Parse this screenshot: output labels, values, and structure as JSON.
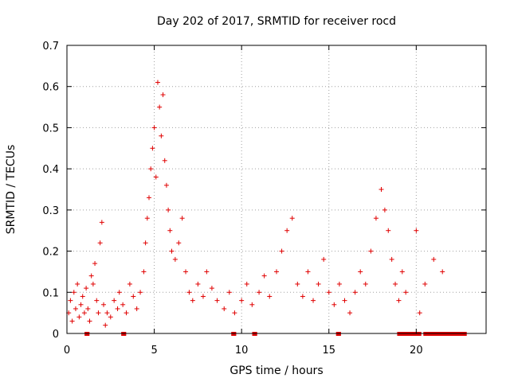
{
  "chart_data": {
    "type": "scatter",
    "title": "Day 202 of 2017, SRMTID for receiver rocd",
    "xlabel": "GPS time / hours",
    "ylabel": "SRMTID / TECUs",
    "xlim": [
      0,
      24
    ],
    "ylim": [
      0,
      0.7
    ],
    "xticks": [
      0,
      5,
      10,
      15,
      20
    ],
    "xtick_labels": [
      "0",
      "5",
      "10",
      "15",
      "20"
    ],
    "yticks": [
      0,
      0.1,
      0.2,
      0.3,
      0.4,
      0.5,
      0.6,
      0.7
    ],
    "ytick_labels": [
      "0",
      "0.1",
      "0.2",
      "0.3",
      "0.4",
      "0.5",
      "0.6",
      "0.7"
    ],
    "grid": true,
    "marker": "+",
    "color": "#e00000",
    "series": [
      {
        "name": "SRMTID",
        "points": [
          [
            0.1,
            0.05
          ],
          [
            0.2,
            0.08
          ],
          [
            0.3,
            0.03
          ],
          [
            0.4,
            0.1
          ],
          [
            0.5,
            0.06
          ],
          [
            0.6,
            0.12
          ],
          [
            0.7,
            0.04
          ],
          [
            0.8,
            0.07
          ],
          [
            0.9,
            0.09
          ],
          [
            1.0,
            0.05
          ],
          [
            1.1,
            0.11
          ],
          [
            1.2,
            0.06
          ],
          [
            1.3,
            0.03
          ],
          [
            1.4,
            0.14
          ],
          [
            1.5,
            0.12
          ],
          [
            1.6,
            0.17
          ],
          [
            1.7,
            0.08
          ],
          [
            1.8,
            0.05
          ],
          [
            1.9,
            0.22
          ],
          [
            2.0,
            0.27
          ],
          [
            2.1,
            0.07
          ],
          [
            2.2,
            0.02
          ],
          [
            2.3,
            0.05
          ],
          [
            2.5,
            0.04
          ],
          [
            2.7,
            0.08
          ],
          [
            2.9,
            0.06
          ],
          [
            3.0,
            0.1
          ],
          [
            3.2,
            0.07
          ],
          [
            3.4,
            0.05
          ],
          [
            3.6,
            0.12
          ],
          [
            3.8,
            0.09
          ],
          [
            4.0,
            0.06
          ],
          [
            4.2,
            0.1
          ],
          [
            4.4,
            0.15
          ],
          [
            4.5,
            0.22
          ],
          [
            4.6,
            0.28
          ],
          [
            4.7,
            0.33
          ],
          [
            4.8,
            0.4
          ],
          [
            4.9,
            0.45
          ],
          [
            5.0,
            0.5
          ],
          [
            5.1,
            0.38
          ],
          [
            5.2,
            0.61
          ],
          [
            5.3,
            0.55
          ],
          [
            5.4,
            0.48
          ],
          [
            5.5,
            0.58
          ],
          [
            5.6,
            0.42
          ],
          [
            5.7,
            0.36
          ],
          [
            5.8,
            0.3
          ],
          [
            5.9,
            0.25
          ],
          [
            6.0,
            0.2
          ],
          [
            6.2,
            0.18
          ],
          [
            6.4,
            0.22
          ],
          [
            6.6,
            0.28
          ],
          [
            6.8,
            0.15
          ],
          [
            7.0,
            0.1
          ],
          [
            7.2,
            0.08
          ],
          [
            7.5,
            0.12
          ],
          [
            7.8,
            0.09
          ],
          [
            8.0,
            0.15
          ],
          [
            8.3,
            0.11
          ],
          [
            8.6,
            0.08
          ],
          [
            9.0,
            0.06
          ],
          [
            9.3,
            0.1
          ],
          [
            9.6,
            0.05
          ],
          [
            10.0,
            0.08
          ],
          [
            10.3,
            0.12
          ],
          [
            10.6,
            0.07
          ],
          [
            11.0,
            0.1
          ],
          [
            11.3,
            0.14
          ],
          [
            11.6,
            0.09
          ],
          [
            12.0,
            0.15
          ],
          [
            12.3,
            0.2
          ],
          [
            12.6,
            0.25
          ],
          [
            12.9,
            0.28
          ],
          [
            13.2,
            0.12
          ],
          [
            13.5,
            0.09
          ],
          [
            13.8,
            0.15
          ],
          [
            14.1,
            0.08
          ],
          [
            14.4,
            0.12
          ],
          [
            14.7,
            0.18
          ],
          [
            15.0,
            0.1
          ],
          [
            15.3,
            0.07
          ],
          [
            15.6,
            0.12
          ],
          [
            15.9,
            0.08
          ],
          [
            16.2,
            0.05
          ],
          [
            16.5,
            0.1
          ],
          [
            16.8,
            0.15
          ],
          [
            17.1,
            0.12
          ],
          [
            17.4,
            0.2
          ],
          [
            17.7,
            0.28
          ],
          [
            18.0,
            0.35
          ],
          [
            18.2,
            0.3
          ],
          [
            18.4,
            0.25
          ],
          [
            18.6,
            0.18
          ],
          [
            18.8,
            0.12
          ],
          [
            19.0,
            0.08
          ],
          [
            19.2,
            0.15
          ],
          [
            19.4,
            0.1
          ],
          [
            20.0,
            0.25
          ],
          [
            20.2,
            0.05
          ],
          [
            20.5,
            0.12
          ],
          [
            21.0,
            0.18
          ],
          [
            21.5,
            0.15
          ]
        ]
      }
    ],
    "baseline_markers_y": 0,
    "baseline_ranges": [
      [
        1.1,
        1.2
      ],
      [
        3.2,
        3.3
      ],
      [
        9.5,
        9.6
      ],
      [
        10.7,
        10.8
      ],
      [
        15.5,
        15.6
      ],
      [
        19.0,
        20.2
      ],
      [
        20.5,
        22.8
      ]
    ]
  }
}
